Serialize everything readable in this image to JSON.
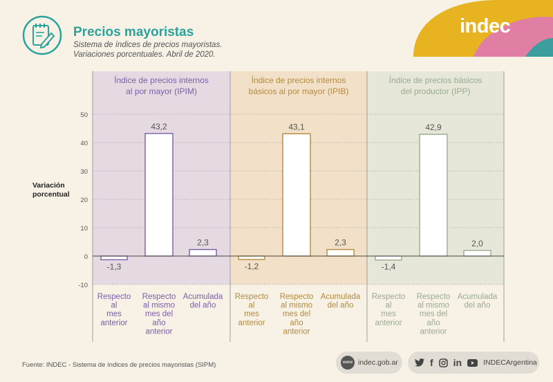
{
  "header": {
    "title": "Precios mayoristas",
    "subtitle_line1": "Sistema de índices de precios mayoristas.",
    "subtitle_line2": "Variaciones porcentuales. Abril de 2020.",
    "icon": "notepad-pencil-icon",
    "logo_text": "indec"
  },
  "colors": {
    "teal": "#2aa39c",
    "ipim": "#7b5ea8",
    "ipim_bg": "#e6dae2",
    "ipib": "#b38a3e",
    "ipib_bg": "#f2e1c8",
    "ipp": "#9aaa8f",
    "ipp_bg": "#e6e7d9",
    "logo_yellow": "#e8b320",
    "logo_pink": "#e07fa3"
  },
  "chart_data": {
    "type": "bar",
    "ylabel": "Variación porcentual",
    "ylim": [
      -10,
      50
    ],
    "yticks": [
      -10,
      0,
      10,
      20,
      30,
      40,
      50
    ],
    "categories": [
      "Respecto al mes anterior",
      "Respecto al mismo mes del año anterior",
      "Acumulada del año"
    ],
    "panels": [
      {
        "name": "Índice de precios internos al por mayor (IPIM)",
        "title_lines": [
          "Índice de precios internos",
          "al por mayor (IPIM)"
        ],
        "values": [
          -1.3,
          43.2,
          2.3
        ],
        "value_labels": [
          "-1,3",
          "43,2",
          "2,3"
        ]
      },
      {
        "name": "Índice de precios internos básicos al por mayor (IPIB)",
        "title_lines": [
          "Índice de precios internos",
          "básicos al por mayor (IPIB)"
        ],
        "values": [
          -1.2,
          43.1,
          2.3
        ],
        "value_labels": [
          "-1,2",
          "43,1",
          "2,3"
        ]
      },
      {
        "name": "Índice de precios básicos del productor (IPP)",
        "title_lines": [
          "Índice de precios básicos",
          "del productor (IPP)"
        ],
        "values": [
          -1.4,
          42.9,
          2.0
        ],
        "value_labels": [
          "-1,4",
          "42,9",
          "2,0"
        ]
      }
    ],
    "category_label_lines": [
      [
        "Respecto",
        "al",
        "mes",
        "anterior"
      ],
      [
        "Respecto",
        "al mismo",
        "mes del",
        "año",
        "anterior"
      ],
      [
        "Acumulada",
        "del año"
      ]
    ],
    "ylabel_lines": [
      "Variación",
      "porcentual"
    ]
  },
  "footer": {
    "source": "Fuente: INDEC - Sistema de índices de precios mayoristas (SIPM)",
    "web_icon_text": "www",
    "web": "indec.gob.ar",
    "social_handle": "INDECArgentina",
    "social_icons": [
      "twitter-icon",
      "facebook-icon",
      "instagram-icon",
      "linkedin-icon",
      "youtube-icon"
    ]
  }
}
